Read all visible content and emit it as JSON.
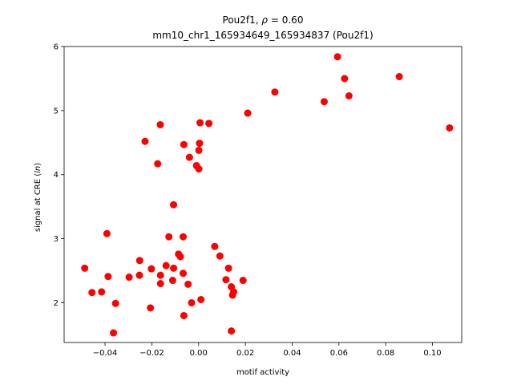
{
  "chart_data": {
    "type": "scatter",
    "title_line1_prefix": "Pou2f1, ",
    "title_line1_rho": "ρ",
    "title_line1_suffix": " = 0.60",
    "title_line2": "mm10_chr1_165934649_165934837 (Pou2f1)",
    "xlabel": "motif activity",
    "ylabel_prefix": "signal at CRE (",
    "ylabel_italic": "ln",
    "ylabel_suffix": ")",
    "xlim": [
      -0.0575,
      0.1125
    ],
    "ylim": [
      1.38,
      6.0
    ],
    "x_ticks": [
      -0.04,
      -0.02,
      0.0,
      0.02,
      0.04,
      0.06,
      0.08,
      0.1
    ],
    "x_tick_labels": [
      "−0.04",
      "−0.02",
      "0.00",
      "0.02",
      "0.04",
      "0.06",
      "0.08",
      "0.10"
    ],
    "y_ticks": [
      2,
      3,
      4,
      5,
      6
    ],
    "y_tick_labels": [
      "2",
      "3",
      "4",
      "5",
      "6"
    ],
    "marker_color": "#ff0000",
    "grid": false,
    "points": [
      {
        "x": 0.0594,
        "y": 5.84
      },
      {
        "x": 0.0624,
        "y": 5.5
      },
      {
        "x": 0.0858,
        "y": 5.53
      },
      {
        "x": 0.0643,
        "y": 5.23
      },
      {
        "x": 0.0326,
        "y": 5.29
      },
      {
        "x": 0.0537,
        "y": 5.14
      },
      {
        "x": 0.1073,
        "y": 4.73
      },
      {
        "x": 0.021,
        "y": 4.96
      },
      {
        "x": 0.0006,
        "y": 4.81
      },
      {
        "x": 0.0044,
        "y": 4.8
      },
      {
        "x": -0.0164,
        "y": 4.78
      },
      {
        "x": -0.0229,
        "y": 4.52
      },
      {
        "x": -0.0063,
        "y": 4.47
      },
      {
        "x": 0.0004,
        "y": 4.49
      },
      {
        "x": 0.0001,
        "y": 4.38
      },
      {
        "x": -0.0039,
        "y": 4.27
      },
      {
        "x": -0.0175,
        "y": 4.17
      },
      {
        "x": -0.0009,
        "y": 4.14
      },
      {
        "x": 0.0001,
        "y": 4.09
      },
      {
        "x": -0.0107,
        "y": 3.53
      },
      {
        "x": -0.0392,
        "y": 3.08
      },
      {
        "x": -0.0127,
        "y": 3.03
      },
      {
        "x": -0.0066,
        "y": 3.03
      },
      {
        "x": 0.0069,
        "y": 2.88
      },
      {
        "x": 0.0091,
        "y": 2.73
      },
      {
        "x": -0.0086,
        "y": 2.76
      },
      {
        "x": -0.0078,
        "y": 2.72
      },
      {
        "x": -0.0252,
        "y": 2.66
      },
      {
        "x": -0.0139,
        "y": 2.58
      },
      {
        "x": -0.0202,
        "y": 2.53
      },
      {
        "x": -0.0107,
        "y": 2.54
      },
      {
        "x": 0.0128,
        "y": 2.54
      },
      {
        "x": -0.0487,
        "y": 2.54
      },
      {
        "x": -0.0066,
        "y": 2.46
      },
      {
        "x": -0.0163,
        "y": 2.43
      },
      {
        "x": -0.0253,
        "y": 2.43
      },
      {
        "x": -0.0387,
        "y": 2.41
      },
      {
        "x": -0.0297,
        "y": 2.4
      },
      {
        "x": -0.0111,
        "y": 2.35
      },
      {
        "x": 0.0117,
        "y": 2.36
      },
      {
        "x": 0.019,
        "y": 2.35
      },
      {
        "x": -0.0163,
        "y": 2.3
      },
      {
        "x": -0.0045,
        "y": 2.29
      },
      {
        "x": 0.014,
        "y": 2.25
      },
      {
        "x": -0.0456,
        "y": 2.16
      },
      {
        "x": -0.0415,
        "y": 2.17
      },
      {
        "x": 0.015,
        "y": 2.17
      },
      {
        "x": 0.0145,
        "y": 2.12
      },
      {
        "x": 0.001,
        "y": 2.05
      },
      {
        "x": -0.003,
        "y": 2.0
      },
      {
        "x": -0.0355,
        "y": 1.99
      },
      {
        "x": -0.0206,
        "y": 1.92
      },
      {
        "x": -0.0063,
        "y": 1.8
      },
      {
        "x": -0.0364,
        "y": 1.53
      },
      {
        "x": 0.014,
        "y": 1.56
      }
    ]
  }
}
